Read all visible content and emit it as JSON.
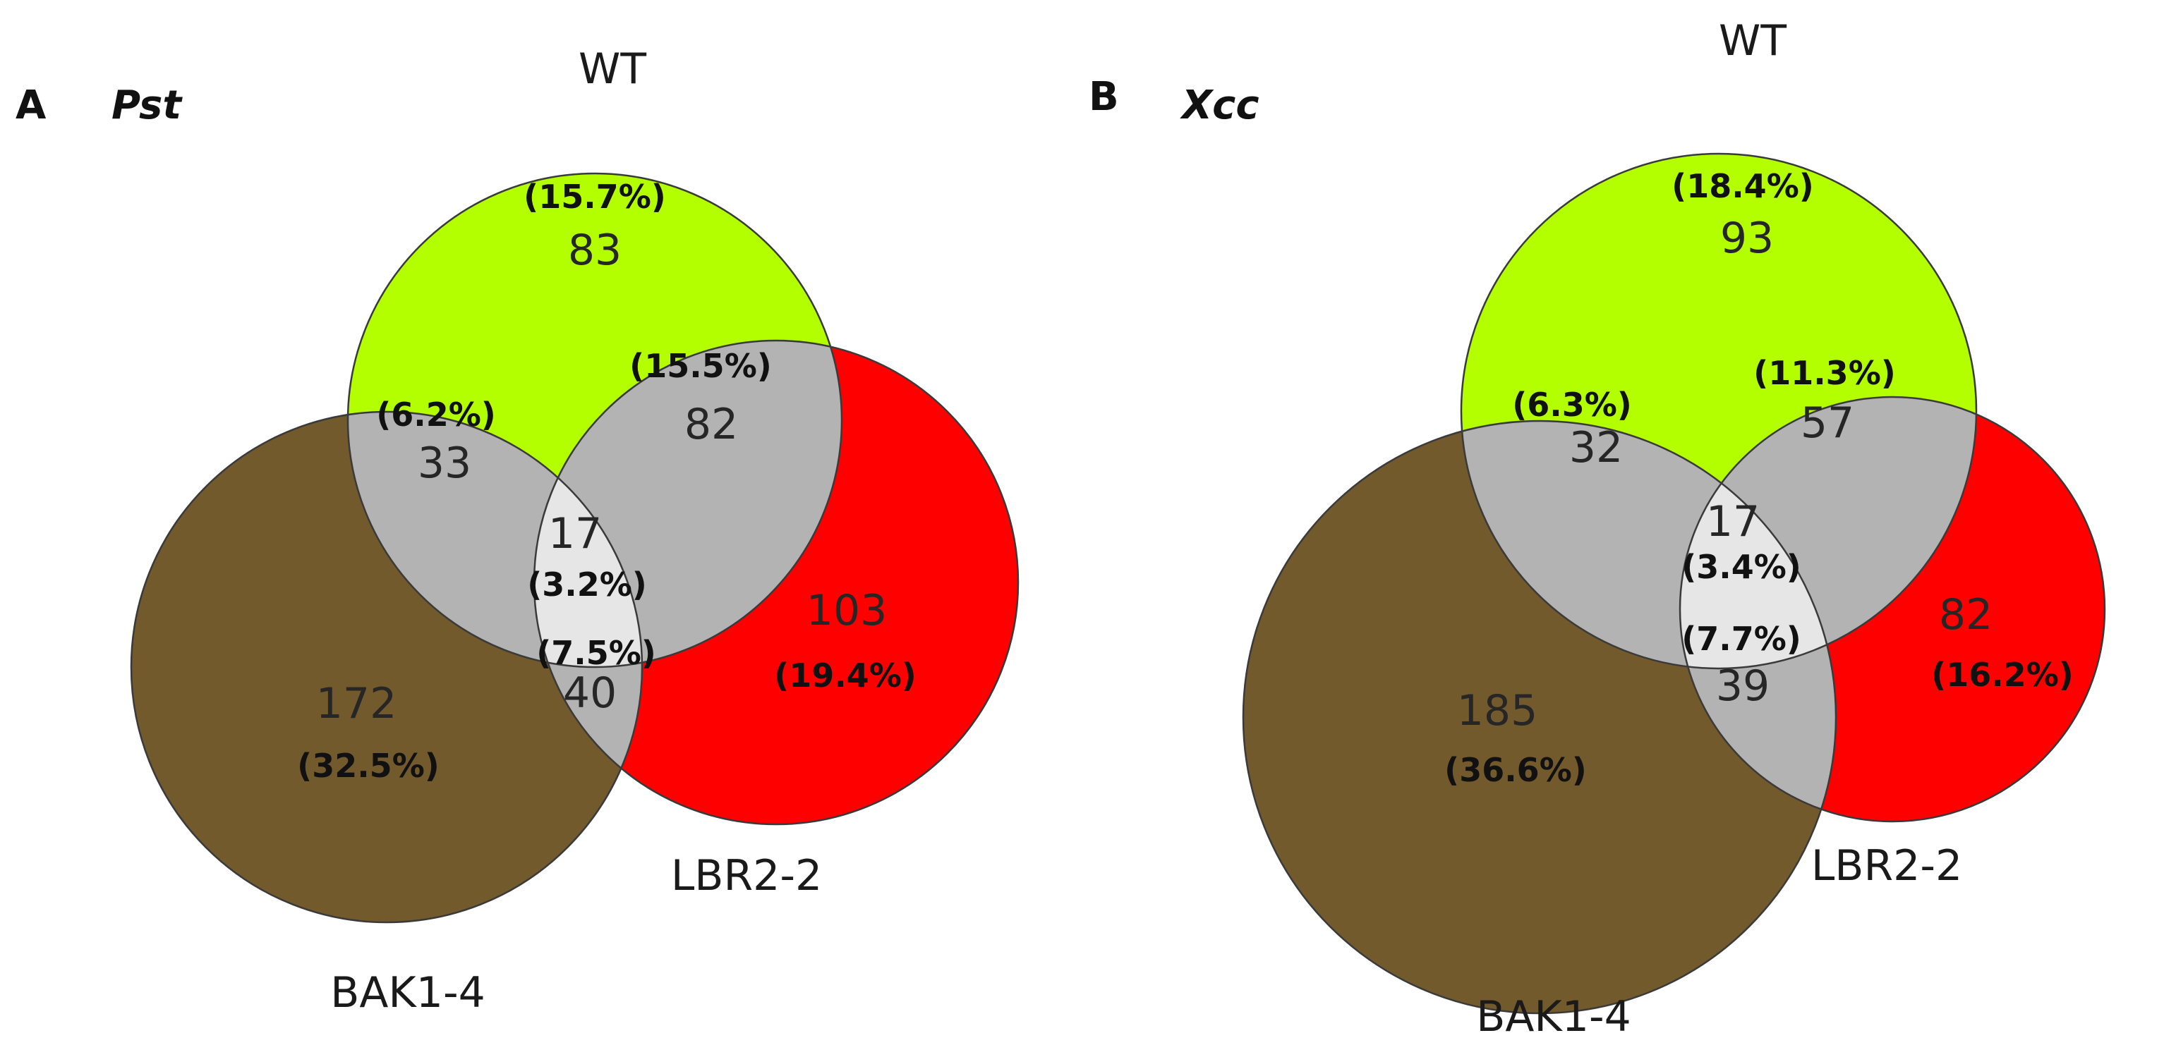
{
  "colors": {
    "wt": "#b3ff00",
    "lbr": "#ff0000",
    "bak": "#735a2c",
    "pair": "#b3b3b3",
    "triple": "#e6e6e6"
  },
  "panels": [
    {
      "letter": "A",
      "organism": "Pst",
      "labels": {
        "wt": "WT",
        "lbr": "LBR2-2",
        "bak": "BAK1-4"
      },
      "regions": {
        "wt_only": {
          "count": "83",
          "pct": "(15.7%)"
        },
        "lbr_only": {
          "count": "103",
          "pct": "(19.4%)"
        },
        "bak_only": {
          "count": "172",
          "pct": "(32.5%)"
        },
        "wt_lbr": {
          "count": "82",
          "pct": "(15.5%)"
        },
        "wt_bak": {
          "count": "33",
          "pct": "(6.2%)"
        },
        "lbr_bak": {
          "count": "40",
          "pct": "(7.5%)"
        },
        "all": {
          "count": "17",
          "pct": "(3.2%)"
        }
      }
    },
    {
      "letter": "B",
      "organism": "Xcc",
      "labels": {
        "wt": "WT",
        "lbr": "LBR2-2",
        "bak": "BAK1-4"
      },
      "regions": {
        "wt_only": {
          "count": "93",
          "pct": "(18.4%)"
        },
        "lbr_only": {
          "count": "82",
          "pct": "(16.2%)"
        },
        "bak_only": {
          "count": "185",
          "pct": "(36.6%)"
        },
        "wt_lbr": {
          "count": "57",
          "pct": "(11.3%)"
        },
        "wt_bak": {
          "count": "32",
          "pct": "(6.3%)"
        },
        "lbr_bak": {
          "count": "39",
          "pct": "(7.7%)"
        },
        "all": {
          "count": "17",
          "pct": "(3.4%)"
        }
      }
    }
  ]
}
